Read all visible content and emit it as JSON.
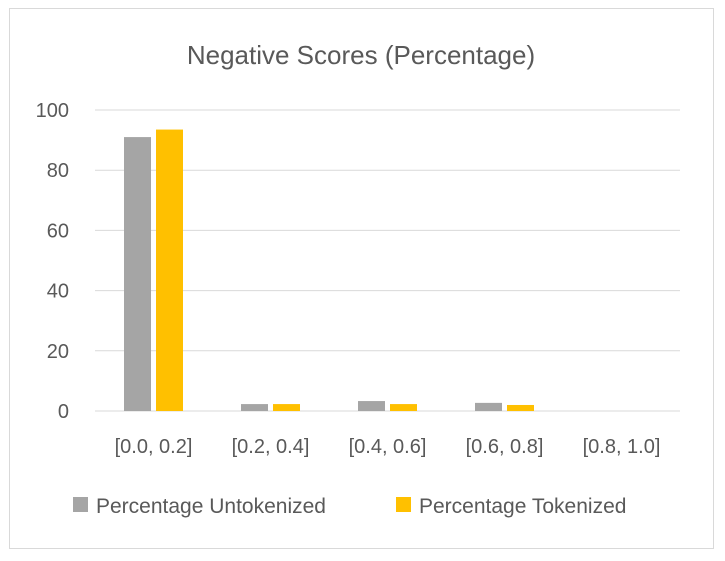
{
  "chart_data": {
    "type": "bar",
    "title": "Negative Scores (Percentage)",
    "xlabel": "",
    "ylabel": "",
    "categories": [
      "[0.0, 0.2]",
      "[0.2, 0.4]",
      "[0.4, 0.6]",
      "[0.6, 0.8]",
      "[0.8, 1.0]"
    ],
    "series": [
      {
        "name": "Percentage Untokenized",
        "color": "#a5a5a5",
        "values": [
          91,
          2.3,
          3.3,
          2.7,
          0
        ]
      },
      {
        "name": "Percentage Tokenized",
        "color": "#ffc000",
        "values": [
          93.5,
          2.3,
          2.3,
          2.0,
          0
        ]
      }
    ],
    "ylim": [
      0,
      100
    ],
    "yticks": [
      0,
      20,
      40,
      60,
      80,
      100
    ],
    "grid": true,
    "legend": "bottom"
  }
}
